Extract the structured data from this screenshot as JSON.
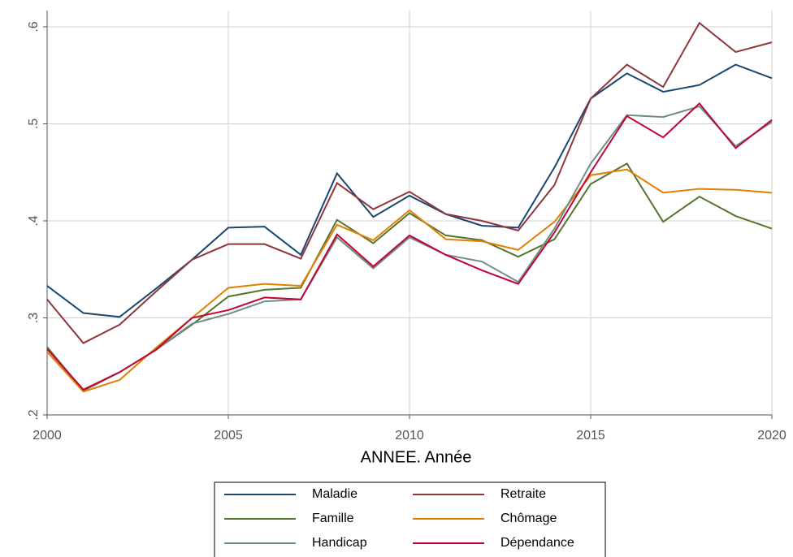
{
  "chart_data": {
    "type": "line",
    "x_label": "ANNEE. Année",
    "x": [
      2000,
      2001,
      2002,
      2003,
      2004,
      2005,
      2006,
      2007,
      2008,
      2009,
      2010,
      2011,
      2012,
      2013,
      2014,
      2015,
      2016,
      2017,
      2018,
      2019,
      2020
    ],
    "xlim": [
      2000,
      2020
    ],
    "xticks": [
      2000,
      2005,
      2010,
      2015,
      2020
    ],
    "ylim": [
      0.2,
      0.6
    ],
    "yticks": [
      {
        "value": 0.2,
        "label": ".2"
      },
      {
        "value": 0.3,
        "label": ".3"
      },
      {
        "value": 0.4,
        "label": ".4"
      },
      {
        "value": 0.5,
        "label": ".5"
      },
      {
        "value": 0.6,
        "label": ".6"
      }
    ],
    "grid": true,
    "legend": "bottom",
    "series": [
      {
        "name": "Maladie",
        "color": "#1a476f",
        "values": [
          0.333,
          0.305,
          0.301,
          0.33,
          0.36,
          0.393,
          0.394,
          0.365,
          0.449,
          0.404,
          0.426,
          0.407,
          0.395,
          0.393,
          0.455,
          0.526,
          0.552,
          0.533,
          0.54,
          0.561,
          0.547
        ]
      },
      {
        "name": "Retraite",
        "color": "#90353b",
        "values": [
          0.319,
          0.274,
          0.293,
          0.327,
          0.36,
          0.376,
          0.376,
          0.361,
          0.439,
          0.412,
          0.43,
          0.407,
          0.4,
          0.39,
          0.437,
          0.526,
          0.561,
          0.538,
          0.604,
          0.574,
          0.584
        ]
      },
      {
        "name": "Famille",
        "color": "#55752f",
        "values": [
          0.27,
          0.225,
          0.244,
          0.267,
          0.293,
          0.322,
          0.329,
          0.331,
          0.401,
          0.377,
          0.408,
          0.385,
          0.38,
          0.363,
          0.381,
          0.438,
          0.459,
          0.399,
          0.425,
          0.405,
          0.392
        ]
      },
      {
        "name": "Chômage",
        "color": "#e37e00",
        "values": [
          0.265,
          0.224,
          0.236,
          0.269,
          0.3,
          0.331,
          0.335,
          0.333,
          0.396,
          0.38,
          0.411,
          0.381,
          0.379,
          0.37,
          0.399,
          0.447,
          0.453,
          0.429,
          0.433,
          0.432,
          0.429
        ]
      },
      {
        "name": "Handicap",
        "color": "#6e8e84",
        "values": [
          0.268,
          0.226,
          0.244,
          0.267,
          0.294,
          0.304,
          0.317,
          0.319,
          0.383,
          0.351,
          0.383,
          0.365,
          0.358,
          0.337,
          0.392,
          0.459,
          0.509,
          0.507,
          0.518,
          0.477,
          0.502
        ]
      },
      {
        "name": "Dépendance",
        "color": "#c10534",
        "values": [
          0.268,
          0.226,
          0.244,
          0.267,
          0.3,
          0.308,
          0.321,
          0.319,
          0.386,
          0.353,
          0.385,
          0.365,
          0.349,
          0.335,
          0.388,
          0.45,
          0.508,
          0.486,
          0.521,
          0.475,
          0.504
        ]
      }
    ]
  }
}
